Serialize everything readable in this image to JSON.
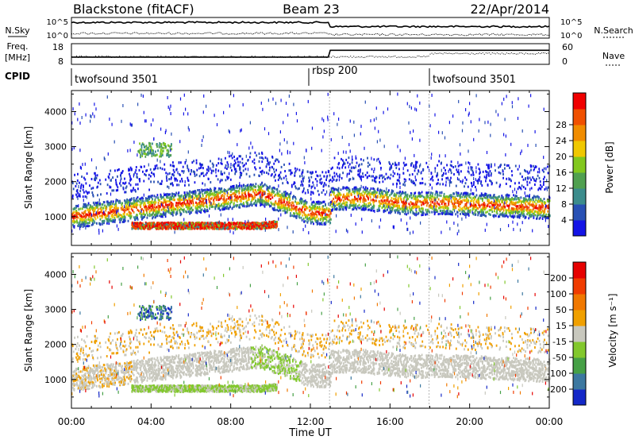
{
  "header": {
    "station": "Blackstone (fitACF)",
    "beam": "Beam 23",
    "date": "22/Apr/2014"
  },
  "noise_panel": {
    "left_label": "N.Sky",
    "right_label": "N.Search",
    "left_ticks": [
      "10^5",
      "10^0"
    ],
    "right_ticks": [
      "10^5",
      "10^0"
    ]
  },
  "freq_panel": {
    "left_label_line1": "Freq.",
    "left_label_line2": "[MHz]",
    "right_label": "Nave",
    "left_ticks": [
      "18",
      "8"
    ],
    "right_ticks": [
      "60",
      "0"
    ]
  },
  "cpid": {
    "label": "CPID",
    "segments": [
      {
        "name": "twofsound 3501",
        "start_hour": 0
      },
      {
        "name": "rbsp 200",
        "start_hour": 13
      },
      {
        "name": "twofsound 3501",
        "start_hour": 18
      }
    ]
  },
  "time_axis": {
    "label": "Time UT",
    "ticks": [
      "00:00",
      "04:00",
      "08:00",
      "12:00",
      "16:00",
      "20:00",
      "00:00"
    ]
  },
  "chart_data": [
    {
      "type": "heatmap",
      "panel": "power",
      "ylabel": "Slant Range [km]",
      "yticks": [
        1000,
        2000,
        3000,
        4000
      ],
      "ylim": [
        180,
        4600
      ],
      "xlim_hours": [
        0,
        24
      ],
      "colorbar": {
        "label": "Power [dB]",
        "ticks": [
          4,
          8,
          12,
          16,
          20,
          24,
          28
        ],
        "colors": [
          "#1414e6",
          "#2850b4",
          "#3c8c8c",
          "#50a050",
          "#82c81e",
          "#f0c800",
          "#f08c00",
          "#f05000",
          "#f00000"
        ]
      },
      "features": [
        {
          "name": "main band",
          "hours": [
            0,
            12
          ],
          "range_km": [
            900,
            1500
          ],
          "peak_power_db": 28
        },
        {
          "name": "lower band",
          "hours": [
            3,
            10.5
          ],
          "range_km": [
            550,
            850
          ],
          "peak_power_db": 28
        },
        {
          "name": "rbsp band",
          "hours": [
            13,
            18
          ],
          "range_km": [
            1100,
            1800
          ],
          "peak_power_db": 28
        },
        {
          "name": "late band",
          "hours": [
            18,
            24
          ],
          "range_km": [
            900,
            1700
          ],
          "peak_power_db": 24
        }
      ]
    },
    {
      "type": "heatmap",
      "panel": "velocity",
      "ylabel": "Slant Range [km]",
      "yticks": [
        1000,
        2000,
        3000,
        4000
      ],
      "ylim": [
        180,
        4600
      ],
      "xlim_hours": [
        0,
        24
      ],
      "colorbar": {
        "label": "Velocity [m s⁻¹]",
        "ticks": [
          200,
          100,
          50,
          15,
          -15,
          -50,
          -100,
          -200
        ],
        "colors": [
          "#1428c8",
          "#3c78a0",
          "#46a046",
          "#82c82d",
          "#c8c8be",
          "#f0a000",
          "#f07800",
          "#f03c00",
          "#e60000"
        ]
      }
    }
  ]
}
